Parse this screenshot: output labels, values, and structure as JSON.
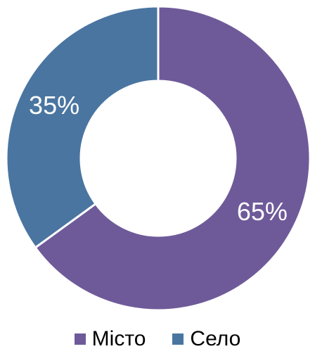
{
  "chart_data": {
    "type": "pie",
    "variant": "donut",
    "title": "",
    "categories": [
      "Місто",
      "Село"
    ],
    "values": [
      65,
      35
    ],
    "labels": [
      "65%",
      "35%"
    ],
    "colors": [
      "#6e5a99",
      "#4a75a0"
    ],
    "legend_position": "bottom",
    "start_angle_deg": 0,
    "direction": "clockwise"
  },
  "legend": {
    "items": [
      {
        "label": "Місто",
        "color": "#6e5a99"
      },
      {
        "label": "Село",
        "color": "#4a75a0"
      }
    ]
  }
}
